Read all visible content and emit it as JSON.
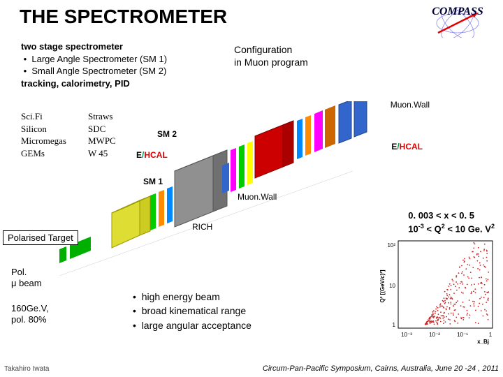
{
  "title": "THE SPECTROMETER",
  "logo": {
    "text": "COMPASS",
    "colors": {
      "ring": "#aaaaff",
      "arrow": "#e00000"
    }
  },
  "description": {
    "line1": "two stage spectrometer",
    "bullet1": "Large Angle Spectrometer (SM 1)",
    "bullet2": "Small Angle Spectrometer (SM 2)",
    "line4": "tracking, calorimetry, PID"
  },
  "config": {
    "line1": "Configuration",
    "line2": "in Muon program"
  },
  "detectors": {
    "col1": [
      "Sci.Fi",
      "Silicon",
      "Micromegas",
      "GEMs"
    ],
    "col2": [
      "Straws",
      "SDC",
      "MWPC",
      "W 45"
    ]
  },
  "diagram_labels": {
    "sm2": "SM 2",
    "sm1": "SM 1",
    "muonwall": "Muon.Wall",
    "rich": "RICH",
    "ehcal_e": "E",
    "ehcal_slash": "/",
    "ehcal_hcal": "HCAL"
  },
  "polarised_target": "Polarised Target",
  "pol_beam": {
    "line1": "Pol.",
    "line2": "μ beam"
  },
  "beam_spec": {
    "line1": "160Ge.V,",
    "line2": "pol. 80%"
  },
  "bullets": {
    "b1": "high energy beam",
    "b2": "broad kinematical range",
    "b3": "large angular acceptance"
  },
  "kinematic": {
    "line1_a": "0. 003 < x < 0. 5",
    "line2_a": "10",
    "line2_b": "-3",
    "line2_c": " < Q",
    "line2_d": "2",
    "line2_e": " < 10 Ge. V",
    "line2_f": "2"
  },
  "plot": {
    "xlabel": "x_Bj",
    "ylabel": "Q² [(GeV/c)²]",
    "xlim": [
      0.003,
      1
    ],
    "ylim": [
      0.5,
      100
    ],
    "scale": "log",
    "point_color": "#cc2222",
    "background_color": "#ffffff",
    "axis_color": "#000000",
    "n_points": 350
  },
  "footer": {
    "left": "Takahiro Iwata",
    "right": "Circum-Pan-Pacific Symposium, Cairns, Australia, June 20 -24 , 2011"
  },
  "diagram": {
    "type": "3d-apparatus",
    "elements": [
      {
        "name": "target",
        "color": "#00b000"
      },
      {
        "name": "sm1-magnet",
        "color": "#eeee44"
      },
      {
        "name": "rich",
        "color": "#808080"
      },
      {
        "name": "trackers",
        "colors": [
          "#00cc00",
          "#ff00ff",
          "#ff8c00",
          "#0088ff",
          "#ffff00"
        ]
      },
      {
        "name": "sm2-magnet",
        "color": "#e00000"
      },
      {
        "name": "ehcal",
        "colors": [
          "#ff00ff",
          "#cc6600"
        ]
      },
      {
        "name": "muonwall",
        "color": "#3366cc"
      }
    ]
  }
}
